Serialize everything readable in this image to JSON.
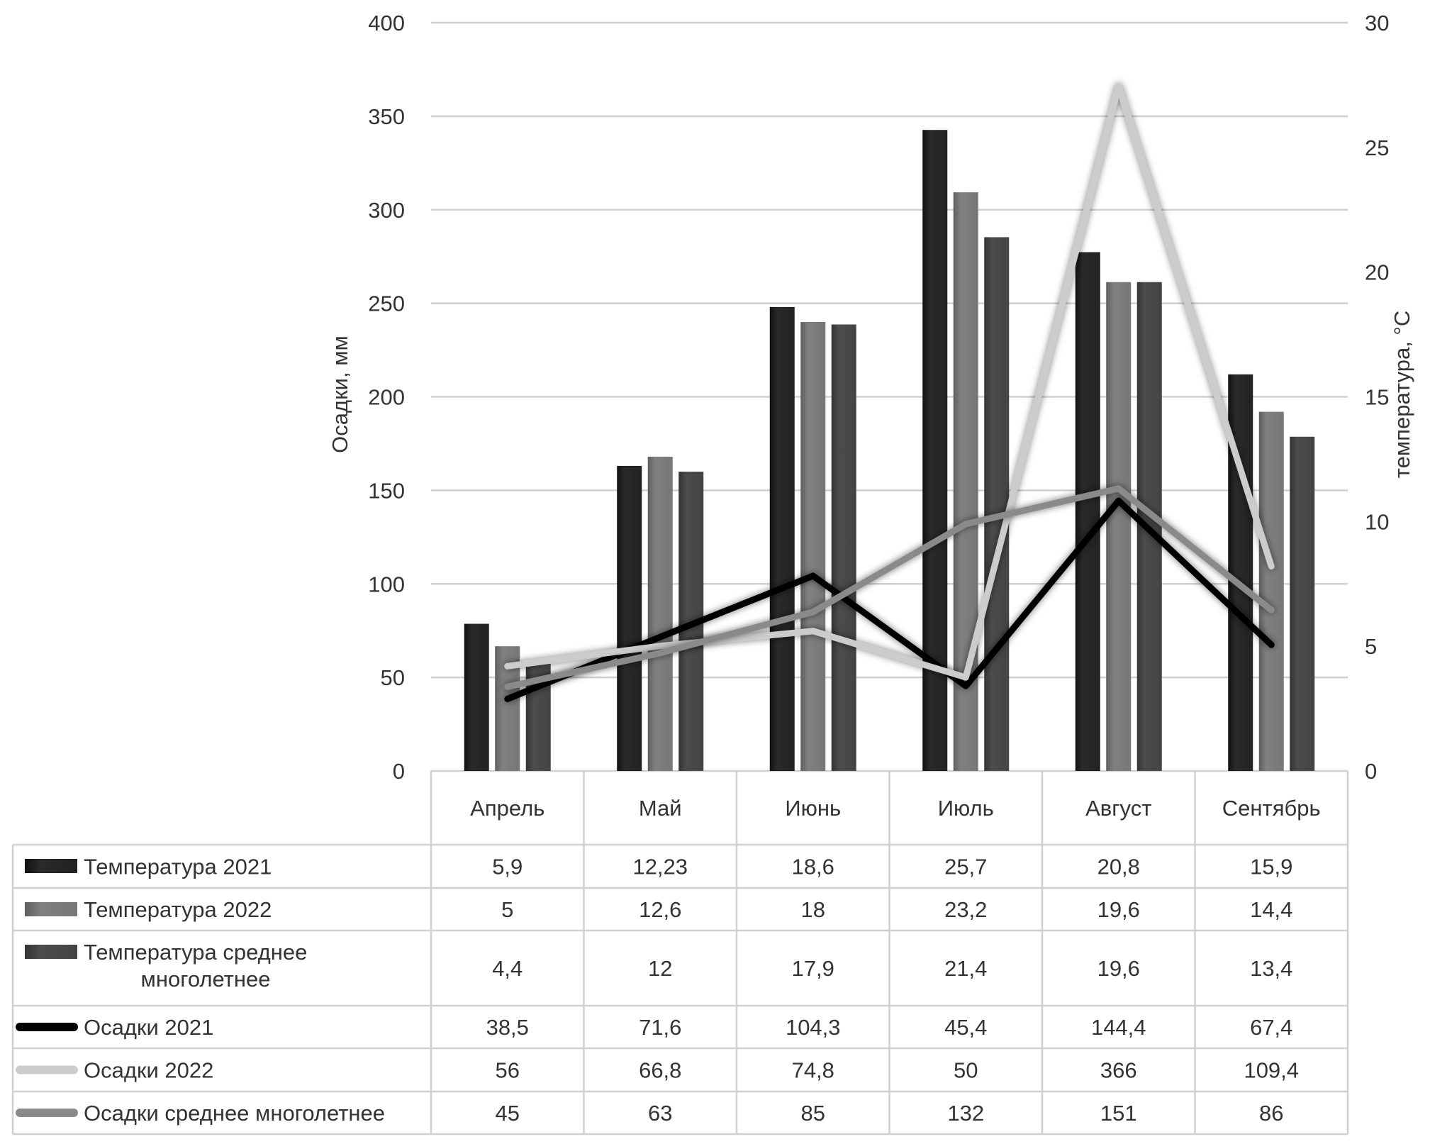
{
  "chart_data": {
    "type": "bar+line",
    "categories": [
      "Апрель",
      "Май",
      "Июнь",
      "Июль",
      "Август",
      "Сентябрь"
    ],
    "y_left": {
      "label": "Осадки, мм",
      "range": [
        0,
        400
      ],
      "ticks": [
        0,
        50,
        100,
        150,
        200,
        250,
        300,
        350,
        400
      ]
    },
    "y_right": {
      "label": "температура, °C",
      "range": [
        0,
        30
      ],
      "ticks": [
        0,
        5,
        10,
        15,
        20,
        25,
        30
      ]
    },
    "grid": true,
    "legend": "data-table",
    "series": [
      {
        "name": "Температура 2021",
        "kind": "bar",
        "axis": "right",
        "color": "#222222",
        "values": [
          5.9,
          12.23,
          18.6,
          25.7,
          20.8,
          15.9
        ],
        "labels": [
          "5,9",
          "12,23",
          "18,6",
          "25,7",
          "20,8",
          "15,9"
        ]
      },
      {
        "name": "Температура 2022",
        "kind": "bar",
        "axis": "right",
        "color": "#7a7a7a",
        "values": [
          5,
          12.6,
          18,
          23.2,
          19.6,
          14.4
        ],
        "labels": [
          "5",
          "12,6",
          "18",
          "23,2",
          "19,6",
          "14,4"
        ]
      },
      {
        "name": "Температура среднее многолетнее",
        "kind": "bar",
        "axis": "right",
        "color": "#474747",
        "values": [
          4.4,
          12,
          17.9,
          21.4,
          19.6,
          13.4
        ],
        "labels": [
          "4,4",
          "12",
          "17,9",
          "21,4",
          "19,6",
          "13,4"
        ]
      },
      {
        "name": "Осадки 2021",
        "kind": "line",
        "axis": "left",
        "color": "#000000",
        "values": [
          38.5,
          71.6,
          104.3,
          45.4,
          144.4,
          67.4
        ],
        "labels": [
          "38,5",
          "71,6",
          "104,3",
          "45,4",
          "144,4",
          "67,4"
        ]
      },
      {
        "name": "Осадки 2022",
        "kind": "line",
        "axis": "left",
        "color": "#cccccc",
        "values": [
          56,
          66.8,
          74.8,
          50,
          366,
          109.4
        ],
        "labels": [
          "56",
          "66,8",
          "74,8",
          "50",
          "366",
          "109,4"
        ]
      },
      {
        "name": "Осадки среднее многолетнее",
        "kind": "line",
        "axis": "left",
        "color": "#8a8a8a",
        "values": [
          45,
          63,
          85,
          132,
          151,
          86
        ],
        "labels": [
          "45",
          "63",
          "85",
          "132",
          "151",
          "86"
        ]
      }
    ]
  }
}
